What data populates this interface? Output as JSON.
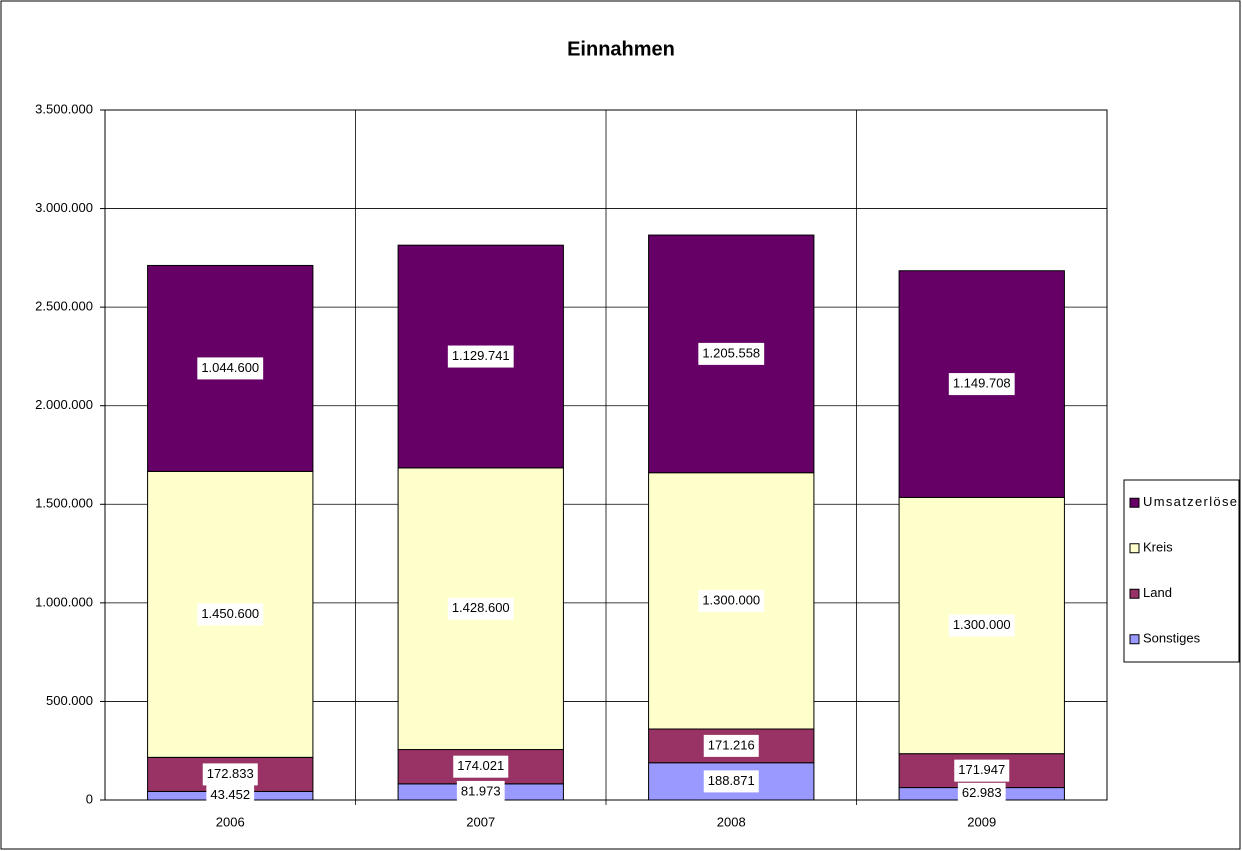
{
  "chart_data": {
    "type": "stacked_bar",
    "title": "Einnahmen",
    "categories": [
      "2006",
      "2007",
      "2008",
      "2009"
    ],
    "series": [
      {
        "name": "Sonstiges",
        "color": "#9999ff",
        "values": [
          43452,
          81973,
          188871,
          62983
        ],
        "value_labels": [
          "43.452",
          "81.973",
          "188.871",
          "62.983"
        ]
      },
      {
        "name": "Land",
        "color": "#993366",
        "values": [
          172833,
          174021,
          171216,
          171947
        ],
        "value_labels": [
          "172.833",
          "174.021",
          "171.216",
          "171.947"
        ]
      },
      {
        "name": "Kreis",
        "color": "#ffffcc",
        "values": [
          1450600,
          1428600,
          1300000,
          1300000
        ],
        "value_labels": [
          "1.450.600",
          "1.428.600",
          "1.300.000",
          "1.300.000"
        ]
      },
      {
        "name": "Umsatzerlöse",
        "color": "#660066",
        "values": [
          1044600,
          1129741,
          1205558,
          1149708
        ],
        "value_labels": [
          "1.044.600",
          "1.129.741",
          "1.205.558",
          "1.149.708"
        ]
      }
    ],
    "ylim": [
      0,
      3500000
    ],
    "yticks": [
      0,
      {
        "value": 500000,
        "label": "500.000"
      },
      {
        "value": 1000000,
        "label": "1.000.000"
      },
      {
        "value": 1500000,
        "label": "1.500.000"
      },
      {
        "value": 2000000,
        "label": "2.000.000"
      },
      {
        "value": 2500000,
        "label": "2.500.000"
      },
      {
        "value": 3000000,
        "label": "3.000.000"
      },
      {
        "value": 3500000,
        "label": "3.500.000"
      }
    ],
    "grid": true,
    "legend": "right"
  }
}
